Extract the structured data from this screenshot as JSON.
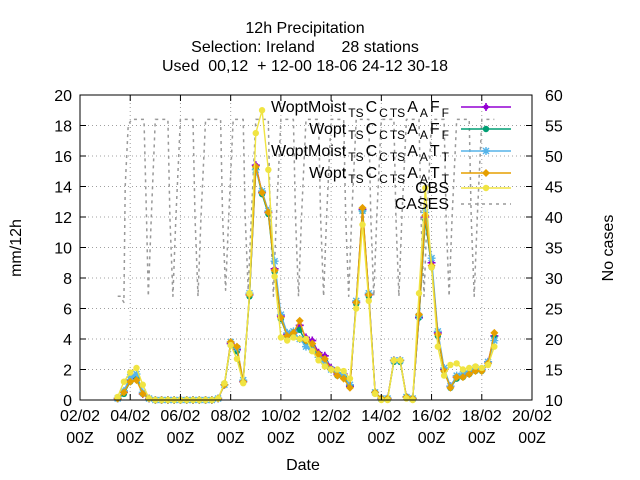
{
  "chart_data": {
    "type": "line",
    "title": [
      "12h Precipitation",
      "Selection: Ireland      28 stations",
      "Used  00,12  + 12-00 18-06 24-12 30-18"
    ],
    "xlabel": "Date",
    "ylabel": "mm/12h",
    "y2label": "No cases",
    "xlim": [
      "2024-02-02 00Z",
      "2024-02-20 00Z"
    ],
    "ylim": [
      0,
      20
    ],
    "y2lim": [
      10,
      60
    ],
    "xticks": [
      {
        "day": 2,
        "label": [
          "02/02",
          "00Z"
        ]
      },
      {
        "day": 4,
        "label": [
          "04/02",
          "00Z"
        ]
      },
      {
        "day": 6,
        "label": [
          "06/02",
          "00Z"
        ]
      },
      {
        "day": 8,
        "label": [
          "08/02",
          "00Z"
        ]
      },
      {
        "day": 10,
        "label": [
          "10/02",
          "00Z"
        ]
      },
      {
        "day": 12,
        "label": [
          "12/02",
          "00Z"
        ]
      },
      {
        "day": 14,
        "label": [
          "14/02",
          "00Z"
        ]
      },
      {
        "day": 16,
        "label": [
          "16/02",
          "00Z"
        ]
      },
      {
        "day": 18,
        "label": [
          "18/02",
          "00Z"
        ]
      },
      {
        "day": 20,
        "label": [
          "20/02",
          "00Z"
        ]
      }
    ],
    "yticks": [
      0,
      2,
      4,
      6,
      8,
      10,
      12,
      14,
      16,
      18,
      20
    ],
    "y2ticks": [
      10,
      15,
      20,
      25,
      30,
      35,
      40,
      45,
      50,
      55,
      60
    ],
    "legend_position": "top-right",
    "x": [
      3.5,
      3.75,
      4.0,
      4.25,
      4.5,
      4.75,
      5.0,
      5.25,
      5.5,
      5.75,
      6.0,
      6.25,
      6.5,
      6.75,
      7.0,
      7.25,
      7.5,
      7.75,
      8.0,
      8.25,
      8.5,
      8.75,
      9.0,
      9.25,
      9.5,
      9.75,
      10.0,
      10.25,
      10.5,
      10.75,
      11.0,
      11.25,
      11.5,
      11.75,
      12.0,
      12.25,
      12.5,
      12.75,
      13.0,
      13.25,
      13.5,
      13.75,
      14.0,
      14.25,
      14.5,
      14.75,
      15.0,
      15.25,
      15.5,
      15.75,
      16.0,
      16.25,
      16.5,
      16.75,
      17.0,
      17.25,
      17.5,
      17.75,
      18.0,
      18.25,
      18.5
    ],
    "series": [
      {
        "name": "WoptMoist_TS C_TS A_F",
        "color": "#9400d3",
        "marker": "plus",
        "values": [
          0.1,
          0.5,
          1.3,
          1.5,
          0.4,
          0.1,
          0.0,
          0.0,
          0.0,
          0.0,
          0.0,
          0.0,
          0.0,
          0.0,
          0.0,
          0.0,
          0.1,
          1.0,
          3.7,
          3.3,
          1.2,
          6.9,
          15.4,
          13.6,
          12.3,
          8.6,
          5.5,
          4.3,
          4.4,
          4.9,
          4.1,
          3.9,
          3.1,
          2.9,
          2.1,
          1.7,
          1.7,
          0.9,
          6.4,
          12.5,
          6.9,
          0.5,
          0.1,
          0.1,
          2.6,
          2.6,
          0.2,
          0.1,
          5.4,
          12.0,
          9.0,
          4.4,
          2.0,
          0.9,
          1.5,
          1.6,
          1.8,
          2.0,
          2.0,
          2.5,
          4.2
        ]
      },
      {
        "name": "Wopt_TS C_TS A_F",
        "color": "#009e73",
        "marker": "circle",
        "values": [
          0.1,
          0.4,
          1.2,
          1.4,
          0.4,
          0.1,
          0.0,
          0.0,
          0.0,
          0.0,
          0.0,
          0.0,
          0.0,
          0.0,
          0.0,
          0.0,
          0.1,
          1.0,
          3.6,
          3.2,
          1.2,
          6.8,
          15.2,
          13.5,
          12.2,
          8.4,
          5.3,
          4.2,
          4.3,
          4.6,
          3.8,
          3.5,
          2.9,
          2.6,
          2.0,
          1.6,
          1.5,
          0.9,
          6.3,
          12.4,
          6.8,
          0.5,
          0.1,
          0.1,
          2.5,
          2.5,
          0.2,
          0.1,
          5.4,
          11.8,
          8.7,
          4.2,
          1.9,
          0.8,
          1.4,
          1.5,
          1.7,
          1.9,
          1.9,
          2.4,
          4.1
        ]
      },
      {
        "name": "WoptMoist_TS C_TS A_T",
        "color": "#56b4e9",
        "marker": "asterisk",
        "values": [
          0.1,
          0.6,
          1.5,
          1.7,
          0.5,
          0.1,
          0.0,
          0.0,
          0.0,
          0.0,
          0.0,
          0.0,
          0.0,
          0.0,
          0.0,
          0.0,
          0.1,
          1.0,
          3.8,
          3.4,
          1.3,
          7.0,
          15.1,
          13.7,
          12.4,
          9.1,
          5.6,
          4.4,
          4.5,
          4.0,
          3.5,
          3.3,
          2.8,
          2.5,
          2.0,
          1.8,
          1.6,
          1.0,
          6.5,
          12.4,
          7.0,
          0.5,
          0.1,
          0.1,
          2.6,
          2.6,
          0.2,
          0.1,
          5.5,
          12.3,
          9.3,
          4.5,
          2.1,
          0.9,
          1.6,
          1.7,
          1.9,
          2.1,
          2.0,
          2.5,
          3.9
        ]
      },
      {
        "name": "Wopt_TS C_TS A_T",
        "color": "#e69f00",
        "marker": "diamond",
        "values": [
          0.1,
          0.5,
          1.2,
          1.3,
          0.4,
          0.1,
          0.0,
          0.0,
          0.0,
          0.0,
          0.0,
          0.0,
          0.0,
          0.0,
          0.0,
          0.0,
          0.1,
          1.0,
          3.8,
          3.5,
          1.2,
          6.9,
          15.3,
          13.6,
          12.3,
          8.5,
          5.4,
          4.2,
          4.4,
          5.2,
          3.9,
          3.7,
          3.0,
          2.7,
          2.0,
          1.6,
          1.4,
          0.8,
          6.4,
          12.6,
          6.9,
          0.5,
          0.1,
          0.1,
          2.6,
          2.6,
          0.2,
          0.1,
          5.6,
          12.1,
          8.8,
          4.3,
          1.9,
          0.8,
          1.5,
          1.5,
          1.7,
          1.9,
          1.9,
          2.4,
          4.4
        ]
      },
      {
        "name": "OBS",
        "color": "#f0e442",
        "marker": "circle",
        "values": [
          0.2,
          1.2,
          1.8,
          2.1,
          1.0,
          0.1,
          0.0,
          0.0,
          0.0,
          0.0,
          0.0,
          0.0,
          0.0,
          0.0,
          0.0,
          0.0,
          0.1,
          1.1,
          3.6,
          2.7,
          1.1,
          7.0,
          17.5,
          19.0,
          15.1,
          8.1,
          4.1,
          3.9,
          4.1,
          4.0,
          4.0,
          3.2,
          2.6,
          2.2,
          2.0,
          2.0,
          1.9,
          1.4,
          6.0,
          11.5,
          6.5,
          0.4,
          0.0,
          0.0,
          2.6,
          2.6,
          0.1,
          0.0,
          7.0,
          13.9,
          8.7,
          3.5,
          1.6,
          2.3,
          2.4,
          2.0,
          2.1,
          2.2,
          2.1,
          2.3,
          3.5
        ]
      },
      {
        "name": "CASES",
        "color": "#999999",
        "marker": "none",
        "axis": "y2",
        "x": [
          3.5,
          3.6,
          3.75,
          3.8,
          3.92,
          4.05,
          4.2,
          4.3,
          4.55,
          4.65,
          4.72,
          4.84,
          5.0,
          5.5,
          5.58,
          5.7,
          5.82,
          6.0,
          6.5,
          6.58,
          6.7,
          6.82,
          7.0,
          7.6,
          7.68,
          7.8,
          7.92,
          8.1,
          8.5,
          8.58,
          8.7,
          8.82,
          9.0,
          9.5,
          9.58,
          9.7,
          9.82,
          10.0,
          10.5,
          10.58,
          10.7,
          10.82,
          11.0,
          11.5,
          11.58,
          11.7,
          11.82,
          12.0,
          12.5,
          12.58,
          12.7,
          12.82,
          13.0,
          13.5,
          13.58,
          13.7,
          13.82,
          14.0,
          14.5,
          14.58,
          14.7,
          14.82,
          15.0,
          15.5,
          15.58,
          15.7,
          15.82,
          16.0,
          16.5,
          16.58,
          16.7,
          16.82,
          17.0,
          17.5,
          17.58,
          17.7,
          17.82,
          18.0,
          18.5
        ],
        "values": [
          27,
          27,
          26,
          45,
          55,
          56,
          56,
          56,
          56,
          40,
          27,
          40,
          56,
          56,
          40,
          27,
          40,
          56,
          56,
          40,
          27,
          40,
          56,
          56,
          40,
          28,
          40,
          56,
          56,
          40,
          28,
          40,
          56,
          56,
          40,
          27,
          40,
          56,
          56,
          40,
          27,
          40,
          56,
          56,
          40,
          27,
          40,
          56,
          56,
          40,
          27,
          40,
          56,
          56,
          40,
          27,
          40,
          56,
          56,
          40,
          27,
          40,
          56,
          56,
          40,
          27,
          40,
          56,
          56,
          40,
          27,
          40,
          56,
          56,
          40,
          27,
          40,
          56,
          56
        ]
      }
    ],
    "legend": [
      {
        "main": "WoptMoist",
        "parts": [
          [
            "T",
            "S"
          ],
          [
            "C",
            ""
          ],
          [
            "T",
            "S"
          ],
          [
            "A",
            ""
          ],
          [
            "F",
            ""
          ]
        ]
      },
      {
        "main": "Wopt",
        "parts": [
          [
            "T",
            "S"
          ],
          [
            "C",
            ""
          ],
          [
            "T",
            "S"
          ],
          [
            "A",
            ""
          ],
          [
            "F",
            ""
          ]
        ]
      },
      {
        "main": "WoptMoist",
        "parts": [
          [
            "T",
            "S"
          ],
          [
            "C",
            ""
          ],
          [
            "T",
            "S"
          ],
          [
            "A",
            ""
          ],
          [
            "T",
            ""
          ]
        ]
      },
      {
        "main": "Wopt",
        "parts": [
          [
            "T",
            "S"
          ],
          [
            "C",
            ""
          ],
          [
            "T",
            "S"
          ],
          [
            "A",
            ""
          ],
          [
            "T",
            ""
          ]
        ]
      },
      {
        "main": "OBS",
        "parts": []
      },
      {
        "main": "CASES",
        "parts": []
      }
    ]
  }
}
